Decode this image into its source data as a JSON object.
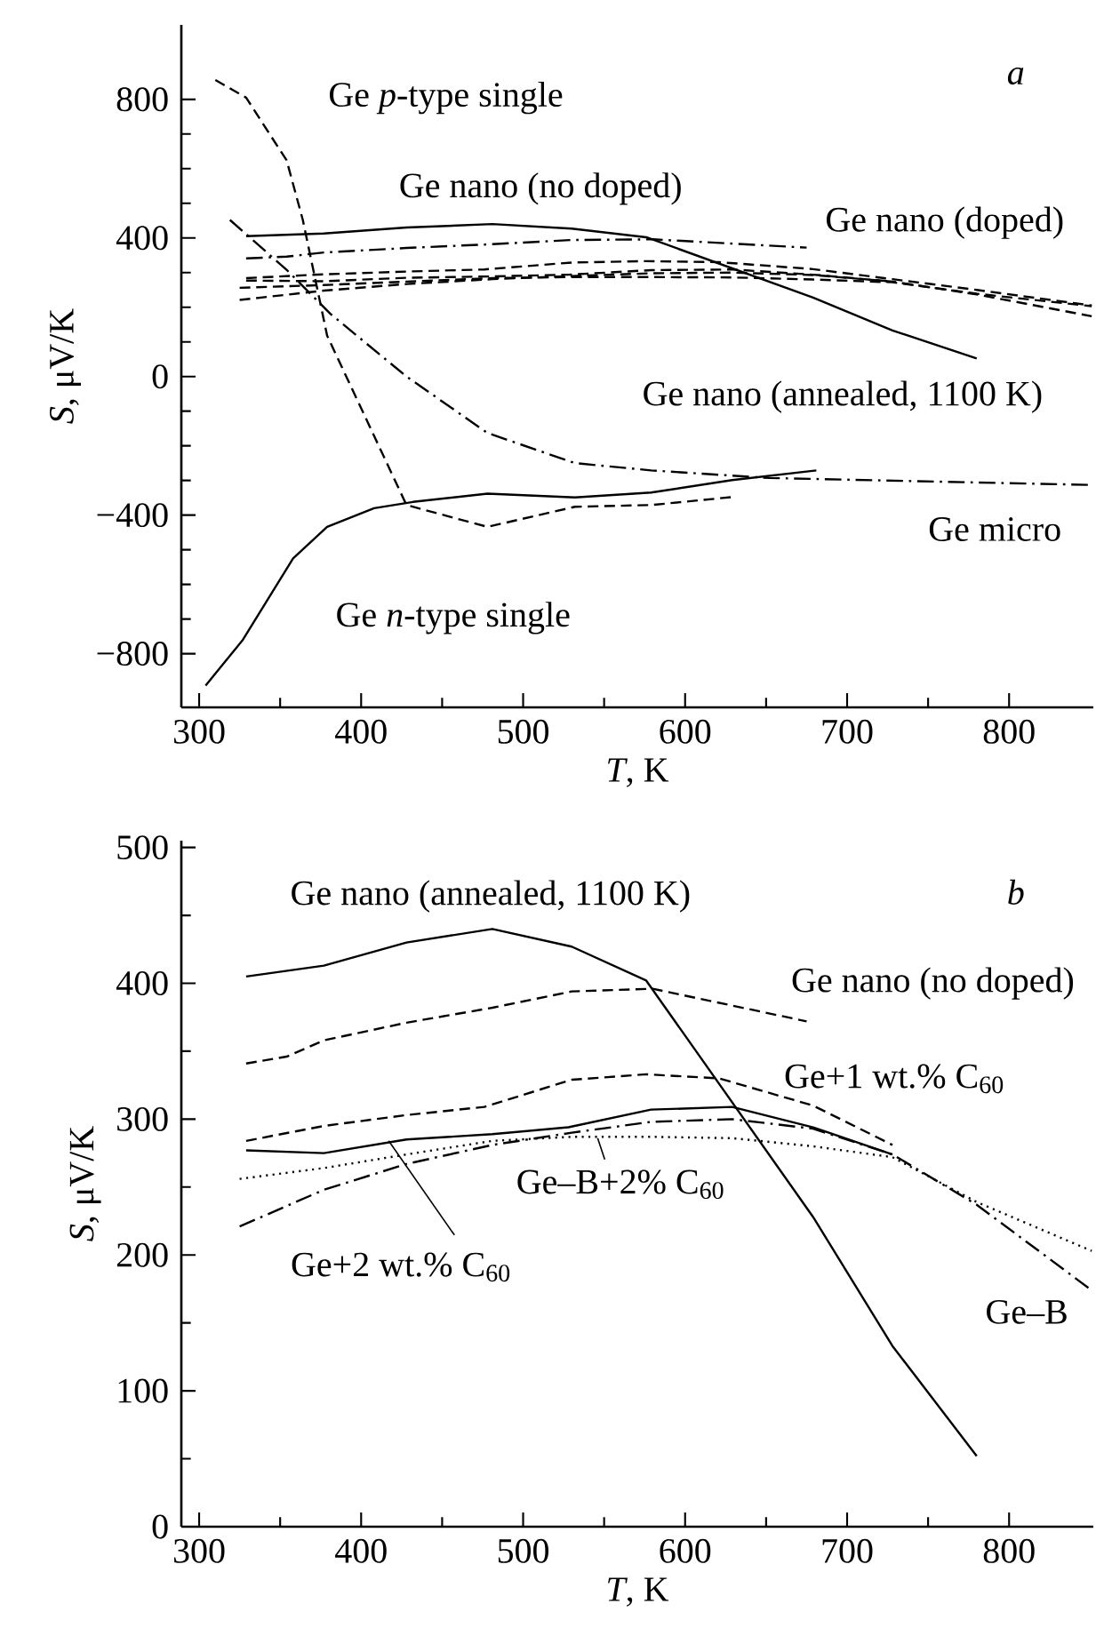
{
  "chart_data": [
    {
      "type": "line",
      "xlabel": "*T*, K",
      "ylabel": "*S*, μV/K",
      "xlim": [
        289,
        852
      ],
      "ylim": [
        -955,
        1015
      ],
      "xticks": [
        300,
        400,
        500,
        600,
        700,
        800
      ],
      "yticks": [
        {
          "value": -800,
          "label": "−800"
        },
        {
          "value": -400,
          "label": "−400"
        },
        0,
        400,
        800
      ],
      "series": [
        {
          "color": "#000000",
          "line_style": "dashed",
          "x": [
            310,
            329,
            354,
            364,
            379,
            428,
            478,
            532,
            579,
            629
          ],
          "values": [
            856,
            805,
            624,
            452,
            118,
            -371,
            -434,
            -376,
            -371,
            -348
          ]
        },
        {
          "color": "#000000",
          "line_style": "solid",
          "x": [
            304,
            327,
            358,
            379,
            408,
            432,
            478,
            532,
            579,
            629,
            681
          ],
          "values": [
            -892,
            -760,
            -525,
            -434,
            -380,
            -362,
            -338,
            -349,
            -335,
            -299,
            -271
          ]
        },
        {
          "color": "#000000",
          "line_style": "dashdot",
          "x": [
            319,
            354,
            381,
            428,
            478,
            532,
            579,
            652,
            851
          ],
          "values": [
            452,
            308,
            181,
            0,
            -163,
            -250,
            -271,
            -293,
            -313
          ]
        },
        {
          "color": "#000000",
          "line_style": "solid",
          "x": [
            329,
            377,
            428,
            481,
            530,
            576,
            679,
            728,
            780
          ],
          "values": [
            405,
            413,
            430,
            440,
            427,
            402,
            228,
            133,
            52
          ]
        },
        {
          "color": "#000000",
          "line_style": "dashdot",
          "x": [
            329,
            354,
            377,
            428,
            481,
            530,
            580,
            675
          ],
          "values": [
            341,
            346,
            358,
            371,
            382,
            394,
            396,
            372
          ]
        },
        {
          "color": "#000000",
          "line_style": "dashed",
          "x": [
            329,
            377,
            428,
            476,
            530,
            576,
            621,
            679,
            728,
            780,
            851
          ],
          "values": [
            284,
            295,
            303,
            309,
            329,
            333,
            330,
            310,
            281,
            250,
            205
          ]
        },
        {
          "color": "#000000",
          "line_style": "dashed",
          "x": [
            329,
            377,
            428,
            481,
            528,
            579,
            629,
            679,
            728
          ],
          "values": [
            277,
            275,
            285,
            289,
            294,
            307,
            309,
            294,
            274
          ]
        },
        {
          "color": "#000000",
          "line_style": "dashed",
          "x": [
            325,
            377,
            428,
            481,
            530,
            579,
            629,
            679,
            728,
            780,
            851
          ],
          "values": [
            256,
            264,
            274,
            284,
            287,
            287,
            286,
            280,
            272,
            239,
            203
          ]
        },
        {
          "color": "#000000",
          "line_style": "dashed",
          "x": [
            325,
            377,
            428,
            481,
            530,
            579,
            629,
            679,
            728,
            780,
            851
          ],
          "values": [
            221,
            248,
            267,
            281,
            290,
            298,
            300,
            293,
            274,
            237,
            174
          ]
        }
      ],
      "annotations": [
        "a",
        "Ge *p*-type single",
        "Ge nano (no doped)",
        "Ge nano (doped)",
        "Ge nano (annealed, 1100 K)",
        "Ge micro",
        "Ge *n*-type single"
      ]
    },
    {
      "type": "line",
      "xlabel": "*T*, K",
      "ylabel": "*S*, μV/K",
      "xlim": [
        289,
        852
      ],
      "ylim": [
        0,
        505
      ],
      "xticks": [
        300,
        400,
        500,
        600,
        700,
        800
      ],
      "yticks": [
        0,
        100,
        200,
        300,
        400,
        500
      ],
      "series": [
        {
          "color": "#000000",
          "line_style": "solid",
          "x": [
            329,
            377,
            428,
            481,
            530,
            576,
            679,
            728,
            780
          ],
          "values": [
            405,
            413,
            430,
            440,
            427,
            402,
            228,
            133,
            52
          ]
        },
        {
          "color": "#000000",
          "line_style": "dashed",
          "x": [
            329,
            354,
            377,
            428,
            481,
            530,
            580,
            675
          ],
          "values": [
            341,
            346,
            358,
            371,
            382,
            394,
            396,
            372
          ]
        },
        {
          "color": "#000000",
          "line_style": "dashed",
          "x": [
            329,
            377,
            428,
            476,
            530,
            576,
            621,
            679,
            728
          ],
          "values": [
            284,
            295,
            303,
            309,
            329,
            333,
            330,
            310,
            281
          ]
        },
        {
          "color": "#000000",
          "line_style": "solid",
          "x": [
            329,
            377,
            428,
            481,
            528,
            579,
            629,
            679,
            728
          ],
          "values": [
            277,
            275,
            285,
            289,
            294,
            307,
            309,
            294,
            274
          ]
        },
        {
          "color": "#000000",
          "line_style": "dashdot",
          "x": [
            325,
            377,
            428,
            481,
            530,
            579,
            629,
            679,
            728,
            780,
            851
          ],
          "values": [
            221,
            248,
            267,
            281,
            290,
            298,
            300,
            293,
            274,
            237,
            174
          ]
        },
        {
          "color": "#000000",
          "line_style": "dotted",
          "x": [
            325,
            377,
            428,
            481,
            530,
            579,
            629,
            679,
            728,
            780,
            851
          ],
          "values": [
            256,
            264,
            274,
            284,
            287,
            287,
            286,
            280,
            272,
            239,
            203
          ]
        }
      ],
      "annotations": [
        "b",
        "Ge nano (annealed, 1100 K)",
        "Ge nano (no doped)",
        "Ge+1 wt.% C$_{60}$",
        {
          "text": "Ge–B+2% C$_{60}$",
          "x": 546,
          "y": 286
        },
        {
          "text": "Ge+2 wt.% C$_{60}$",
          "x": 417,
          "y": 284
        },
        "Ge–B"
      ]
    }
  ]
}
